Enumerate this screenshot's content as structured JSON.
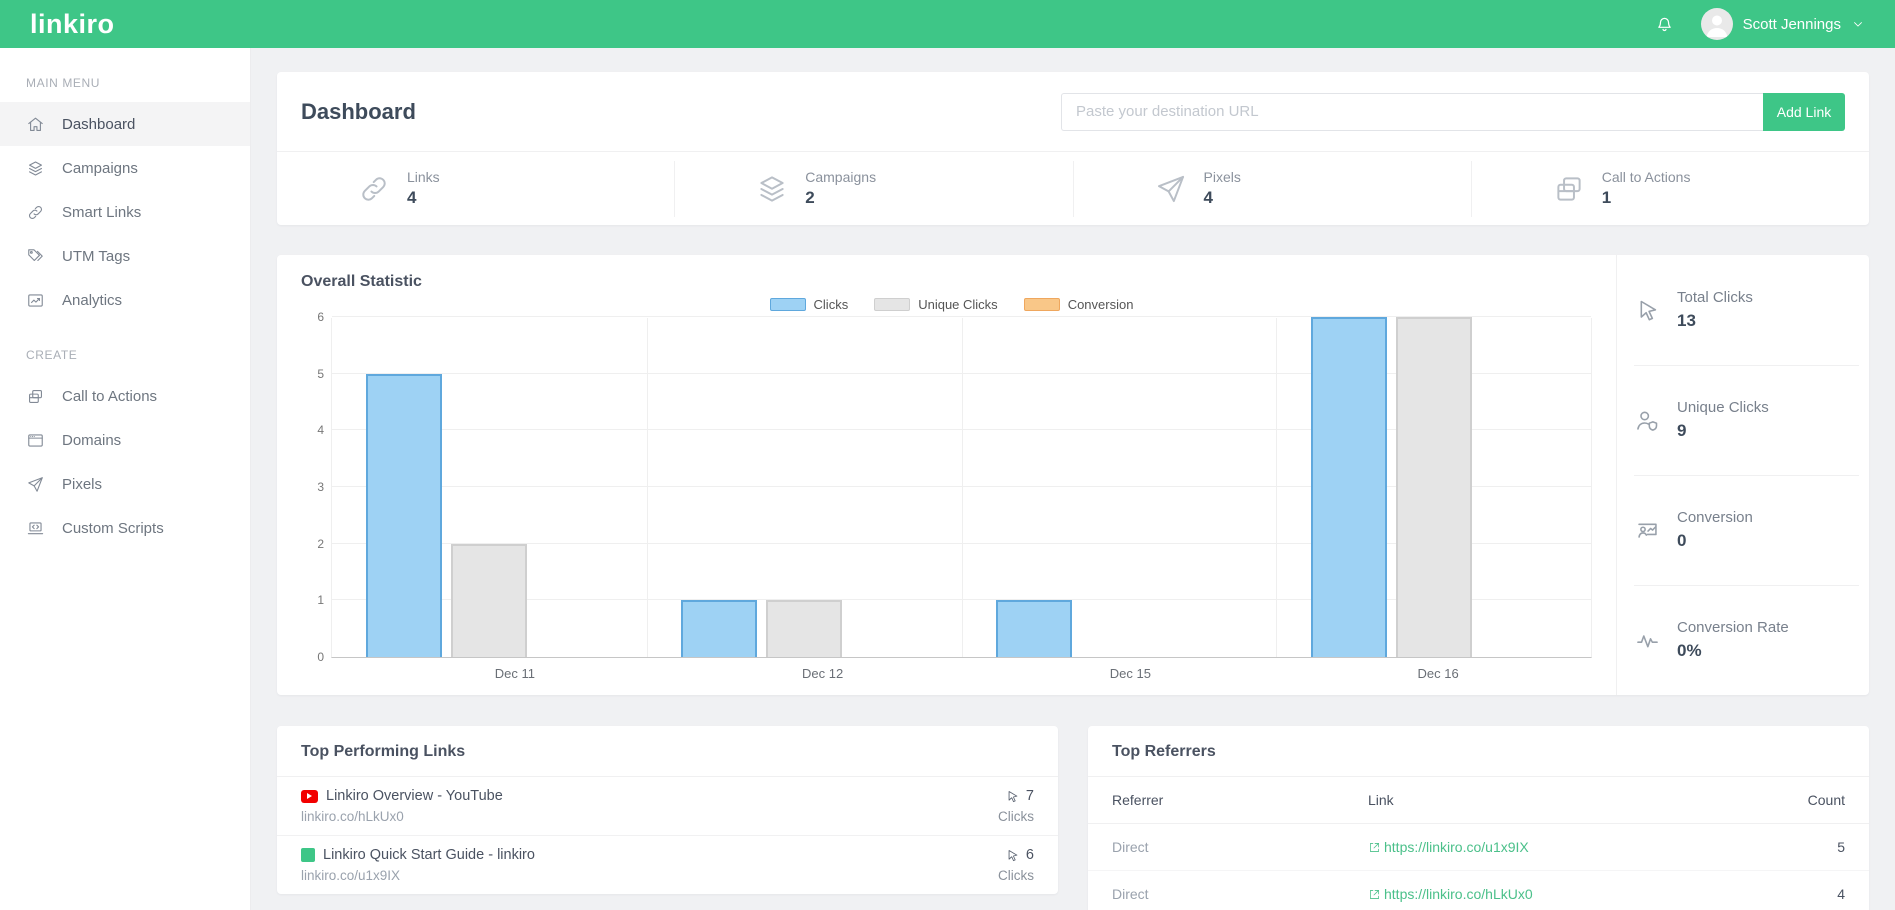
{
  "topbar": {
    "logo": "linkiro",
    "user_name": "Scott Jennings"
  },
  "sidebar": {
    "sections": [
      {
        "label": "MAIN MENU",
        "items": [
          {
            "label": "Dashboard",
            "icon": "home-icon",
            "active": true
          },
          {
            "label": "Campaigns",
            "icon": "layers-icon",
            "active": false
          },
          {
            "label": "Smart Links",
            "icon": "link-icon",
            "active": false
          },
          {
            "label": "UTM Tags",
            "icon": "tag-icon",
            "active": false
          },
          {
            "label": "Analytics",
            "icon": "analytics-icon",
            "active": false
          }
        ]
      },
      {
        "label": "CREATE",
        "items": [
          {
            "label": "Call to Actions",
            "icon": "cards-icon",
            "active": false
          },
          {
            "label": "Domains",
            "icon": "browser-icon",
            "active": false
          },
          {
            "label": "Pixels",
            "icon": "send-icon",
            "active": false
          },
          {
            "label": "Custom Scripts",
            "icon": "code-laptop-icon",
            "active": false
          }
        ]
      }
    ]
  },
  "header": {
    "title": "Dashboard",
    "url_placeholder": "Paste your destination URL",
    "add_link_label": "Add Link"
  },
  "overview_stats": [
    {
      "label": "Links",
      "value": "4",
      "icon": "link-icon"
    },
    {
      "label": "Campaigns",
      "value": "2",
      "icon": "layers-icon"
    },
    {
      "label": "Pixels",
      "value": "4",
      "icon": "send-icon"
    },
    {
      "label": "Call to Actions",
      "value": "1",
      "icon": "cards-icon"
    }
  ],
  "chart_card": {
    "title": "Overall Statistic"
  },
  "chart_data": {
    "type": "bar",
    "title": "Overall Statistic",
    "categories": [
      "Dec 11",
      "Dec 12",
      "Dec 15",
      "Dec 16"
    ],
    "series": [
      {
        "name": "Clicks",
        "values": [
          5,
          1,
          1,
          6
        ],
        "color": "#9ed2f4",
        "border_color": "#5fa8dd"
      },
      {
        "name": "Unique Clicks",
        "values": [
          2,
          1,
          0,
          6
        ],
        "color": "#e5e5e5",
        "border_color": "#cfcfcf"
      },
      {
        "name": "Conversion",
        "values": [
          0,
          0,
          0,
          0
        ],
        "color": "#f9c788",
        "border_color": "#efa75e"
      }
    ],
    "ylim": [
      0,
      6
    ],
    "yticks": [
      0,
      1,
      2,
      3,
      4,
      5,
      6
    ],
    "grid": true,
    "legend_position": "top-center"
  },
  "summary_stats": [
    {
      "label": "Total Clicks",
      "value": "13",
      "icon": "cursor-icon"
    },
    {
      "label": "Unique Clicks",
      "value": "9",
      "icon": "user-badge-icon"
    },
    {
      "label": "Conversion",
      "value": "0",
      "icon": "user-chart-icon"
    },
    {
      "label": "Conversion Rate",
      "value": "0%",
      "icon": "pulse-icon"
    }
  ],
  "top_links": {
    "title": "Top Performing Links",
    "rows": [
      {
        "favicon": "youtube-icon",
        "title": "Linkiro Overview - YouTube",
        "short_url": "linkiro.co/hLkUx0",
        "count": "7",
        "unit": "Clicks"
      },
      {
        "favicon": "green-square-icon",
        "title": "Linkiro Quick Start Guide - linkiro",
        "short_url": "linkiro.co/u1x9IX",
        "count": "6",
        "unit": "Clicks"
      }
    ]
  },
  "top_referrers": {
    "title": "Top Referrers",
    "headers": {
      "referrer": "Referrer",
      "link": "Link",
      "count": "Count"
    },
    "rows": [
      {
        "referrer": "Direct",
        "link": "https://linkiro.co/u1x9IX",
        "count": "5"
      },
      {
        "referrer": "Direct",
        "link": "https://linkiro.co/hLkUx0",
        "count": "4"
      }
    ]
  },
  "colors": {
    "brand_green": "#3ec687",
    "clicks_blue": "#9ed2f4",
    "unique_clicks_gray": "#e5e5e5",
    "conversion_orange": "#f9c788",
    "referrer_link_green": "#4bc08a"
  }
}
